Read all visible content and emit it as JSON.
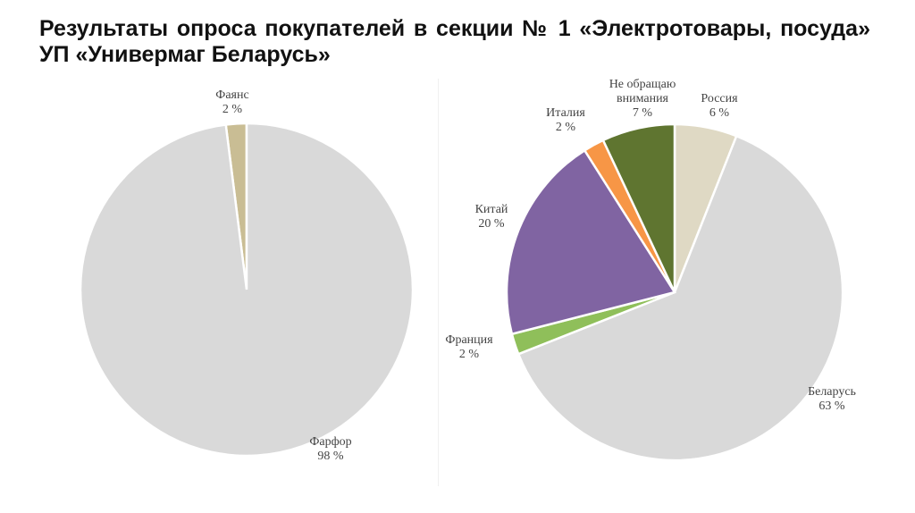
{
  "title": "Результаты опроса покупателей в секции № 1 «Электротовары, посуда» УП «Универмаг Беларусь»",
  "chart_data": [
    {
      "type": "pie",
      "categories": [
        "Фаянс",
        "Фарфор"
      ],
      "values": [
        2,
        98
      ],
      "value_labels": [
        "2 %",
        "98 %"
      ],
      "colors": [
        "#c9bd94",
        "#d9d9d9"
      ],
      "start": "12 o'clock, clockwise from Фаянс counter-clockwise side",
      "legend": "none"
    },
    {
      "type": "pie",
      "categories": [
        "Россия",
        "Беларусь",
        "Франция",
        "Китай",
        "Италия",
        "Не обращаю внимания"
      ],
      "values": [
        6,
        63,
        2,
        20,
        2,
        7
      ],
      "value_labels": [
        "6 %",
        "63 %",
        "2 %",
        "20 %",
        "2 %",
        "7 %"
      ],
      "colors": [
        "#dfd9c4",
        "#d9d9d9",
        "#8fbf5a",
        "#8064a2",
        "#f79646",
        "#5f7530"
      ],
      "legend": "none"
    }
  ]
}
